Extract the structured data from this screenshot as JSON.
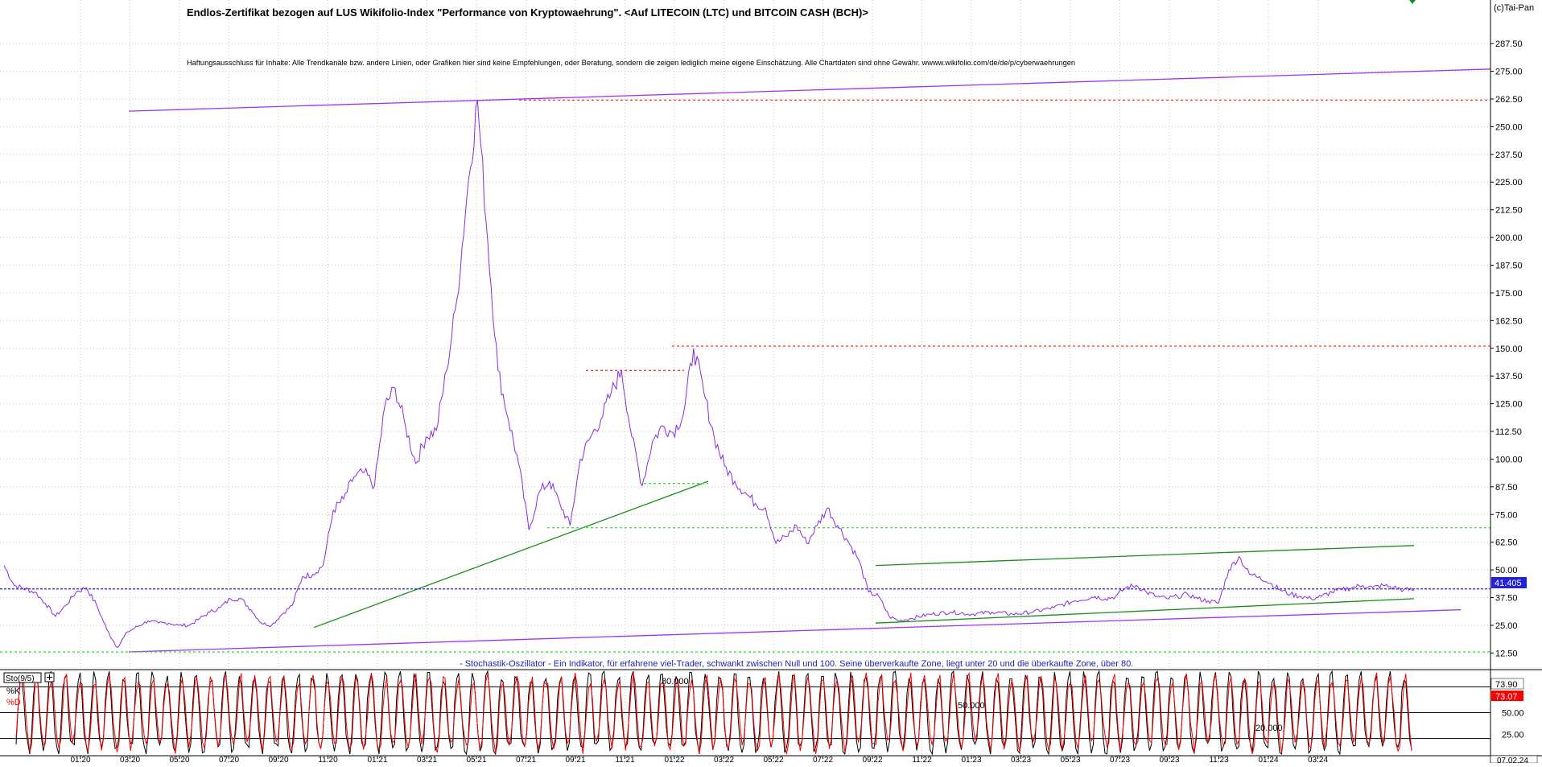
{
  "header": {
    "title": "Endlos-Zertifikat bezogen auf LUS Wikifolio-Index \"Performance von Kryptowaehrung\". <Auf LITECOIN (LTC) und BITCOIN CASH (BCH)>",
    "disclaimer": "Haftungsausschluss für Inhalte: Alle Trendkanäle bzw. andere Linien, oder Grafiken hier sind keine Empfehlungen, oder Beratung, sondern die zeigen lediglich meine eigene Einschätzung. Alle Chartdaten sind ohne Gewähr. wwww.wikifolio.com/de/de/p/cyberwaehrungen",
    "copyright": "(c)Tai-Pan"
  },
  "colors": {
    "price": "#8a2be2",
    "trend_purple": "#9a32f0",
    "trend_green": "#1a8c1a",
    "resistance_red": "#ff3333",
    "support_lightgreen": "#33dd33",
    "current_blue": "#2222dd",
    "k_line": "#000000",
    "d_line": "#ff0000",
    "stoch_caption": "#2222aa"
  },
  "chart_data": [
    {
      "type": "line",
      "title": "Endlos-Zertifikat bezogen auf LUS Wikifolio-Index \"Performance von Kryptowaehrung\". <Auf LITECOIN (LTC) und BITCOIN CASH (BCH)>",
      "x_ticks": [
        "01.20",
        "03.20",
        "05.20",
        "07.20",
        "09.20",
        "11.20",
        "01.21",
        "03.21",
        "05.21",
        "07.21",
        "09.21",
        "11.21",
        "01.22",
        "03.22",
        "05.22",
        "07.22",
        "09.22",
        "11.22",
        "01.23",
        "03.23",
        "05.23",
        "07.23",
        "09.23",
        "11.23",
        "01.24",
        "03.24"
      ],
      "x_end_label": "07.02.24",
      "y_ticks": [
        12.5,
        25,
        37.5,
        50,
        62.5,
        75,
        87.5,
        100,
        112.5,
        125,
        137.5,
        150,
        162.5,
        175,
        187.5,
        200,
        212.5,
        225,
        237.5,
        250,
        262.5,
        275,
        287.5
      ],
      "ylim": [
        5,
        297
      ],
      "grid": true,
      "current_value_label": "41.405",
      "series": [
        {
          "points": [
            [
              0,
              52
            ],
            [
              1,
              43
            ],
            [
              3,
              40
            ],
            [
              4,
              35
            ],
            [
              5,
              29
            ],
            [
              6,
              34
            ],
            [
              7,
              40
            ],
            [
              8,
              42
            ],
            [
              9,
              34
            ],
            [
              10,
              23
            ],
            [
              11,
              15
            ],
            [
              12,
              22
            ],
            [
              14,
              27
            ],
            [
              15,
              26
            ],
            [
              16,
              26
            ],
            [
              17,
              25
            ],
            [
              18,
              25
            ],
            [
              19,
              28
            ],
            [
              20,
              31
            ],
            [
              21,
              33
            ],
            [
              22,
              37
            ],
            [
              23,
              37
            ],
            [
              24,
              32
            ],
            [
              25,
              26
            ],
            [
              26,
              25
            ],
            [
              27,
              30
            ],
            [
              28,
              34
            ],
            [
              29,
              47
            ],
            [
              30,
              48
            ],
            [
              31,
              52
            ],
            [
              32,
              77
            ],
            [
              33,
              82
            ],
            [
              34,
              92
            ],
            [
              35,
              94
            ],
            [
              36,
              88
            ],
            [
              37,
              124
            ],
            [
              38,
              132
            ],
            [
              39,
              115
            ],
            [
              40,
              98
            ],
            [
              41,
              110
            ],
            [
              42,
              113
            ],
            [
              43,
              140
            ],
            [
              44,
              172
            ],
            [
              45,
              220
            ],
            [
              46,
              262
            ],
            [
              47,
              198
            ],
            [
              48,
              140
            ],
            [
              49,
              118
            ],
            [
              50,
              98
            ],
            [
              51,
              68
            ],
            [
              52,
              85
            ],
            [
              53,
              90
            ],
            [
              54,
              80
            ],
            [
              55,
              70
            ],
            [
              56,
              100
            ],
            [
              57,
              110
            ],
            [
              58,
              118
            ],
            [
              59,
              130
            ],
            [
              60,
              140
            ],
            [
              61,
              110
            ],
            [
              62,
              88
            ],
            [
              63,
              108
            ],
            [
              64,
              115
            ],
            [
              65,
              112
            ],
            [
              66,
              120
            ],
            [
              67,
              150
            ],
            [
              68,
              130
            ],
            [
              69,
              110
            ],
            [
              70,
              97
            ],
            [
              71,
              90
            ],
            [
              72,
              85
            ],
            [
              73,
              80
            ],
            [
              74,
              78
            ],
            [
              75,
              62
            ],
            [
              76,
              65
            ],
            [
              77,
              70
            ],
            [
              78,
              62
            ],
            [
              79,
              70
            ],
            [
              80,
              78
            ],
            [
              81,
              70
            ],
            [
              82,
              63
            ],
            [
              83,
              55
            ],
            [
              84,
              40
            ],
            [
              85,
              38
            ],
            [
              86,
              29
            ],
            [
              87,
              27
            ],
            [
              88,
              28
            ],
            [
              90,
              30
            ],
            [
              92,
              31
            ],
            [
              94,
              30
            ],
            [
              96,
              31
            ],
            [
              98,
              30
            ],
            [
              100,
              31
            ],
            [
              102,
              33
            ],
            [
              104,
              36
            ],
            [
              106,
              38
            ],
            [
              107,
              37
            ],
            [
              108,
              38
            ],
            [
              109,
              42
            ],
            [
              110,
              43
            ],
            [
              111,
              40
            ],
            [
              112,
              38
            ],
            [
              113,
              37
            ],
            [
              114,
              38
            ],
            [
              115,
              39
            ],
            [
              116,
              37
            ],
            [
              117,
              36
            ],
            [
              118,
              35
            ],
            [
              119,
              50
            ],
            [
              120,
              56
            ],
            [
              121,
              48
            ],
            [
              122,
              47
            ],
            [
              123,
              44
            ],
            [
              124,
              41
            ],
            [
              125,
              39
            ],
            [
              126,
              38
            ],
            [
              127,
              37
            ],
            [
              128,
              38
            ],
            [
              129,
              40
            ],
            [
              130,
              41
            ],
            [
              131,
              42
            ],
            [
              132,
              43
            ],
            [
              133,
              42
            ],
            [
              134,
              43
            ],
            [
              135,
              42
            ],
            [
              136,
              41
            ],
            [
              137,
              41
            ]
          ]
        }
      ]
    },
    {
      "type": "line",
      "title": "- Stochastik-Oszillator - Ein Indikator, für erfahrene viel-Trader, schwankt zwischen Null und 100. Seine überverkaufte Zone, liegt unter 20 und die überkaufte Zone, über 80.",
      "indicator_label": "Sto(9/5)",
      "y_ticks": [
        25,
        50
      ],
      "ylim": [
        0,
        100
      ],
      "levels": [
        "80.000",
        "50.000",
        "20.000"
      ],
      "current_values": {
        "k": "73.90",
        "d": "73.07"
      },
      "series": [
        {
          "name": "%K",
          "pattern": [
            15,
            60,
            90,
            95,
            70,
            30,
            10,
            5,
            25,
            70,
            92,
            88,
            50,
            20,
            8
          ]
        },
        {
          "name": "%D",
          "pattern": [
            20,
            50,
            80,
            90,
            78,
            45,
            18,
            8,
            18,
            55,
            85,
            90,
            62,
            30,
            12
          ]
        }
      ]
    }
  ]
}
